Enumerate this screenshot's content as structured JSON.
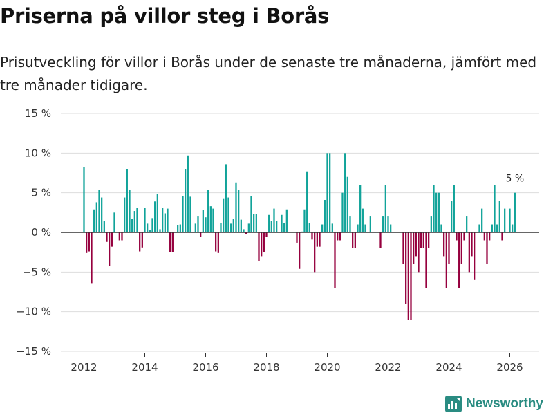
{
  "title": "Priserna på villor steg i Borås",
  "subtitle": "Prisutveckling för villor i Borås under de senaste tre månaderna, jämfört med tre månader tidigare.",
  "brand": "Newsworthy",
  "colors": {
    "positive": "#11a39a",
    "negative": "#96003e",
    "zero_line": "#333333",
    "grid": "#dddddd",
    "brand": "#2a8c82"
  },
  "chart_data": {
    "type": "bar",
    "title": "Priserna på villor steg i Borås",
    "xlabel": "",
    "ylabel": "",
    "ylim": [
      -15,
      15
    ],
    "yticks": [
      15,
      10,
      5,
      0,
      -5,
      -10,
      -15
    ],
    "ytick_labels": [
      "15 %",
      "10 %",
      "5 %",
      "0 %",
      "−5 %",
      "−10 %",
      "−15 %"
    ],
    "xticks": [
      2012,
      2014,
      2016,
      2018,
      2020,
      2022,
      2024,
      2026
    ],
    "xtick_labels": [
      "2012",
      "2014",
      "2016",
      "2018",
      "2020",
      "2022",
      "2024",
      "2026"
    ],
    "x_start": "2012-01",
    "frequency": "monthly",
    "annotation": {
      "label": "5 %",
      "target": "last"
    },
    "values": [
      8.2,
      -2.6,
      -2.4,
      -6.4,
      2.9,
      3.8,
      5.4,
      4.4,
      1.4,
      -1.2,
      -4.2,
      -1.8,
      2.5,
      0,
      -1.0,
      -1.0,
      4.4,
      8.0,
      5.4,
      1.7,
      2.7,
      3.1,
      -2.4,
      -1.9,
      3.1,
      1.1,
      0.3,
      1.8,
      3.9,
      4.8,
      0.4,
      3.1,
      2.4,
      3.0,
      -2.5,
      -2.5,
      0,
      0.9,
      1.0,
      4.6,
      8.0,
      9.7,
      4.5,
      0,
      1.1,
      2.0,
      -0.6,
      2.8,
      1.9,
      5.4,
      3.3,
      3.0,
      -2.4,
      -2.6,
      1.2,
      4.3,
      8.6,
      4.4,
      1.1,
      1.7,
      6.3,
      5.4,
      1.6,
      0.4,
      -0.2,
      1.1,
      4.6,
      2.3,
      2.3,
      -3.6,
      -3.0,
      -2.5,
      -0.6,
      2.2,
      1.4,
      3.0,
      1.4,
      0,
      2.2,
      1.2,
      2.9,
      0,
      0,
      0,
      -1.3,
      -4.6,
      0.1,
      2.9,
      7.7,
      1.2,
      -0.9,
      -5.0,
      -1.8,
      -1.8,
      1.0,
      4.1,
      10.0,
      10.0,
      1.1,
      -7.0,
      -1.0,
      -1.0,
      5.0,
      10.0,
      7.0,
      2.0,
      -2.0,
      -2.0,
      1.0,
      6.0,
      3.0,
      1.0,
      0,
      2.0,
      0,
      0,
      0,
      -2.0,
      2.0,
      6.0,
      2.0,
      1.0,
      0,
      0,
      0,
      0,
      -4.0,
      -9.0,
      -11.0,
      -11.0,
      -4.0,
      -3.0,
      -5.0,
      -2.0,
      -2.0,
      -7.0,
      -2.0,
      2.0,
      6.0,
      5.0,
      5.0,
      1.0,
      -3.0,
      -7.0,
      -4.0,
      4.0,
      6.0,
      -1.0,
      -7.0,
      -4.0,
      -1.0,
      2.0,
      -5.0,
      -3.0,
      -6.0,
      0,
      1.0,
      3.0,
      -1.0,
      -4.0,
      -1.0,
      1.0,
      6.0,
      1.0,
      4.0,
      -1.0,
      3.0,
      0,
      3.0,
      1.0,
      5.0
    ]
  }
}
